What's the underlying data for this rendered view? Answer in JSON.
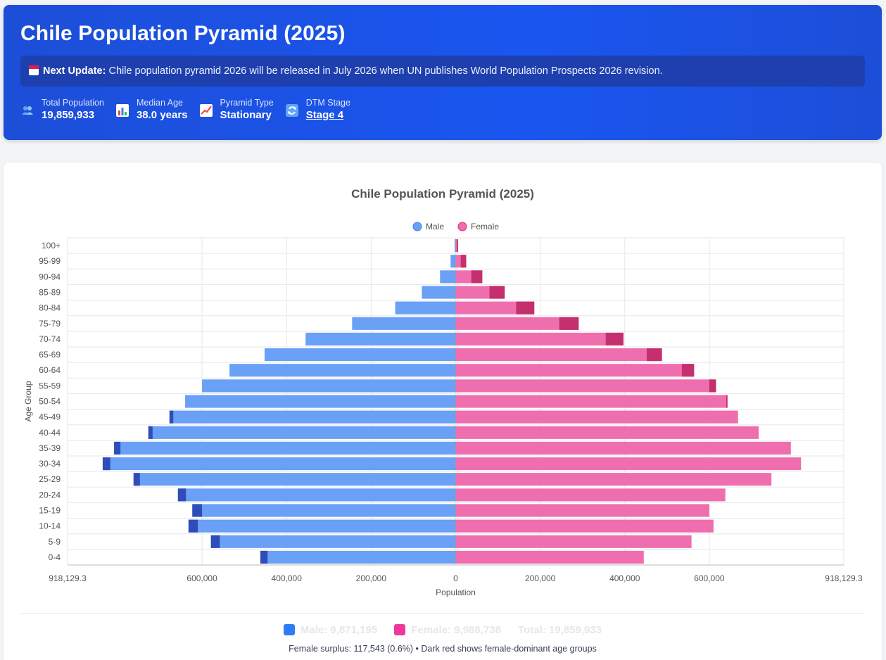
{
  "header": {
    "title": "Chile Population Pyramid (2025)",
    "notice_label": "Next Update:",
    "notice_text": "Chile population pyramid 2026 will be released in July 2026 when UN publishes World Population Prospects 2026 revision.",
    "stats": [
      {
        "label": "Total Population",
        "value": "19,859,933",
        "icon": "people-icon"
      },
      {
        "label": "Median Age",
        "value": "38.0 years",
        "icon": "bar-chart-icon"
      },
      {
        "label": "Pyramid Type",
        "value": "Stationary",
        "icon": "trend-icon"
      },
      {
        "label": "DTM Stage",
        "value": "Stage 4",
        "icon": "cycle-icon"
      }
    ]
  },
  "colors": {
    "male": "#6aa0f5",
    "male_surplus": "#2f4db8",
    "female": "#ef6fae",
    "female_surplus": "#c4306e",
    "legend_male": "#2f7cf6",
    "legend_female": "#f0389a"
  },
  "chart_data": {
    "type": "bar",
    "orientation": "horizontal-pyramid",
    "title": "Chile Population Pyramid (2025)",
    "xlabel": "Population",
    "ylabel": "Age Group",
    "xlim": [
      -918129.3,
      918129.3
    ],
    "x_ticks": [
      "918,129.3",
      "600,000",
      "400,000",
      "200,000",
      "0",
      "200,000",
      "400,000",
      "600,000",
      "918,129.3"
    ],
    "x_tick_values": [
      -918129.3,
      -600000,
      -400000,
      -200000,
      0,
      200000,
      400000,
      600000,
      918129.3
    ],
    "legend": [
      "Male",
      "Female"
    ],
    "legend_position": "top-center",
    "grid": true,
    "categories": [
      "100+",
      "95-99",
      "90-94",
      "85-89",
      "80-84",
      "75-79",
      "70-74",
      "65-69",
      "60-64",
      "55-59",
      "50-54",
      "45-49",
      "40-44",
      "35-39",
      "30-34",
      "25-29",
      "20-24",
      "15-19",
      "10-14",
      "5-9",
      "0-4"
    ],
    "series": [
      {
        "name": "Male",
        "values": [
          2500,
          12000,
          37000,
          80000,
          143000,
          245000,
          355000,
          452000,
          535000,
          600000,
          640000,
          677000,
          727000,
          808000,
          835000,
          762000,
          657000,
          623000,
          632000,
          579000,
          462000
        ]
      },
      {
        "name": "Female",
        "values": [
          5500,
          25000,
          63000,
          116000,
          186000,
          291000,
          397000,
          488000,
          564000,
          616000,
          643000,
          668000,
          717000,
          793000,
          817000,
          747000,
          638000,
          600000,
          610000,
          558000,
          445000
        ]
      }
    ]
  },
  "footer": {
    "male_total": "Male: 9,871,195",
    "female_total": "Female: 9,988,738",
    "total": "Total: 19,859,933",
    "note": "Female surplus: 117,543 (0.6%) • Dark red shows female-dominant age groups"
  }
}
